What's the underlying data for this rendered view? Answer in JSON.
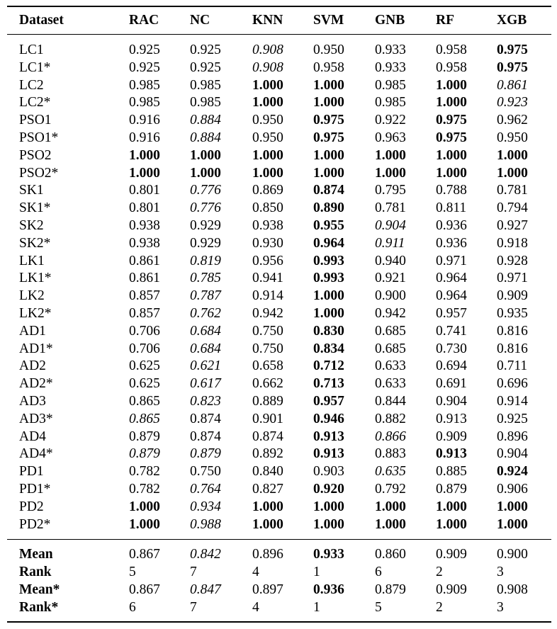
{
  "columns": [
    "Dataset",
    "RAC",
    "NC",
    "KNN",
    "SVM",
    "GNB",
    "RF",
    "XGB"
  ],
  "rows": [
    {
      "dataset": "LC1",
      "values": [
        "0.925",
        "0.925",
        "0.908",
        "0.950",
        "0.933",
        "0.958",
        "0.975"
      ],
      "styles": [
        "",
        "",
        "i",
        "",
        "",
        "",
        "b"
      ]
    },
    {
      "dataset": "LC1*",
      "values": [
        "0.925",
        "0.925",
        "0.908",
        "0.958",
        "0.933",
        "0.958",
        "0.975"
      ],
      "styles": [
        "",
        "",
        "i",
        "",
        "",
        "",
        "b"
      ]
    },
    {
      "dataset": "LC2",
      "values": [
        "0.985",
        "0.985",
        "1.000",
        "1.000",
        "0.985",
        "1.000",
        "0.861"
      ],
      "styles": [
        "",
        "",
        "b",
        "b",
        "",
        "b",
        "i"
      ]
    },
    {
      "dataset": "LC2*",
      "values": [
        "0.985",
        "0.985",
        "1.000",
        "1.000",
        "0.985",
        "1.000",
        "0.923"
      ],
      "styles": [
        "",
        "",
        "b",
        "b",
        "",
        "b",
        "i"
      ]
    },
    {
      "dataset": "PSO1",
      "values": [
        "0.916",
        "0.884",
        "0.950",
        "0.975",
        "0.922",
        "0.975",
        "0.962"
      ],
      "styles": [
        "",
        "i",
        "",
        "b",
        "",
        "b",
        ""
      ]
    },
    {
      "dataset": "PSO1*",
      "values": [
        "0.916",
        "0.884",
        "0.950",
        "0.975",
        "0.963",
        "0.975",
        "0.950"
      ],
      "styles": [
        "",
        "i",
        "",
        "b",
        "",
        "b",
        ""
      ]
    },
    {
      "dataset": "PSO2",
      "values": [
        "1.000",
        "1.000",
        "1.000",
        "1.000",
        "1.000",
        "1.000",
        "1.000"
      ],
      "styles": [
        "b",
        "b",
        "b",
        "b",
        "b",
        "b",
        "b"
      ]
    },
    {
      "dataset": "PSO2*",
      "values": [
        "1.000",
        "1.000",
        "1.000",
        "1.000",
        "1.000",
        "1.000",
        "1.000"
      ],
      "styles": [
        "b",
        "b",
        "b",
        "b",
        "b",
        "b",
        "b"
      ]
    },
    {
      "dataset": "SK1",
      "values": [
        "0.801",
        "0.776",
        "0.869",
        "0.874",
        "0.795",
        "0.788",
        "0.781"
      ],
      "styles": [
        "",
        "i",
        "",
        "b",
        "",
        "",
        ""
      ]
    },
    {
      "dataset": "SK1*",
      "values": [
        "0.801",
        "0.776",
        "0.850",
        "0.890",
        "0.781",
        "0.811",
        "0.794"
      ],
      "styles": [
        "",
        "i",
        "",
        "b",
        "",
        "",
        ""
      ]
    },
    {
      "dataset": "SK2",
      "values": [
        "0.938",
        "0.929",
        "0.938",
        "0.955",
        "0.904",
        "0.936",
        "0.927"
      ],
      "styles": [
        "",
        "",
        "",
        "b",
        "i",
        "",
        ""
      ]
    },
    {
      "dataset": "SK2*",
      "values": [
        "0.938",
        "0.929",
        "0.930",
        "0.964",
        "0.911",
        "0.936",
        "0.918"
      ],
      "styles": [
        "",
        "",
        "",
        "b",
        "i",
        "",
        ""
      ]
    },
    {
      "dataset": "LK1",
      "values": [
        "0.861",
        "0.819",
        "0.956",
        "0.993",
        "0.940",
        "0.971",
        "0.928"
      ],
      "styles": [
        "",
        "i",
        "",
        "b",
        "",
        "",
        ""
      ]
    },
    {
      "dataset": "LK1*",
      "values": [
        "0.861",
        "0.785",
        "0.941",
        "0.993",
        "0.921",
        "0.964",
        "0.971"
      ],
      "styles": [
        "",
        "i",
        "",
        "b",
        "",
        "",
        ""
      ]
    },
    {
      "dataset": "LK2",
      "values": [
        "0.857",
        "0.787",
        "0.914",
        "1.000",
        "0.900",
        "0.964",
        "0.909"
      ],
      "styles": [
        "",
        "i",
        "",
        "b",
        "",
        "",
        ""
      ]
    },
    {
      "dataset": "LK2*",
      "values": [
        "0.857",
        "0.762",
        "0.942",
        "1.000",
        "0.942",
        "0.957",
        "0.935"
      ],
      "styles": [
        "",
        "i",
        "",
        "b",
        "",
        "",
        ""
      ]
    },
    {
      "dataset": "AD1",
      "values": [
        "0.706",
        "0.684",
        "0.750",
        "0.830",
        "0.685",
        "0.741",
        "0.816"
      ],
      "styles": [
        "",
        "i",
        "",
        "b",
        "",
        "",
        ""
      ]
    },
    {
      "dataset": "AD1*",
      "values": [
        "0.706",
        "0.684",
        "0.750",
        "0.834",
        "0.685",
        "0.730",
        "0.816"
      ],
      "styles": [
        "",
        "i",
        "",
        "b",
        "",
        "",
        ""
      ]
    },
    {
      "dataset": "AD2",
      "values": [
        "0.625",
        "0.621",
        "0.658",
        "0.712",
        "0.633",
        "0.694",
        "0.711"
      ],
      "styles": [
        "",
        "i",
        "",
        "b",
        "",
        "",
        ""
      ]
    },
    {
      "dataset": "AD2*",
      "values": [
        "0.625",
        "0.617",
        "0.662",
        "0.713",
        "0.633",
        "0.691",
        "0.696"
      ],
      "styles": [
        "",
        "i",
        "",
        "b",
        "",
        "",
        ""
      ]
    },
    {
      "dataset": "AD3",
      "values": [
        "0.865",
        "0.823",
        "0.889",
        "0.957",
        "0.844",
        "0.904",
        "0.914"
      ],
      "styles": [
        "",
        "i",
        "",
        "b",
        "",
        "",
        ""
      ]
    },
    {
      "dataset": "AD3*",
      "values": [
        "0.865",
        "0.874",
        "0.901",
        "0.946",
        "0.882",
        "0.913",
        "0.925"
      ],
      "styles": [
        "i",
        "",
        "",
        "b",
        "",
        "",
        ""
      ]
    },
    {
      "dataset": "AD4",
      "values": [
        "0.879",
        "0.874",
        "0.874",
        "0.913",
        "0.866",
        "0.909",
        "0.896"
      ],
      "styles": [
        "",
        "",
        "",
        "b",
        "i",
        "",
        ""
      ]
    },
    {
      "dataset": "AD4*",
      "values": [
        "0.879",
        "0.879",
        "0.892",
        "0.913",
        "0.883",
        "0.913",
        "0.904"
      ],
      "styles": [
        "i",
        "i",
        "",
        "b",
        "",
        "b",
        ""
      ]
    },
    {
      "dataset": "PD1",
      "values": [
        "0.782",
        "0.750",
        "0.840",
        "0.903",
        "0.635",
        "0.885",
        "0.924"
      ],
      "styles": [
        "",
        "",
        "",
        "",
        "i",
        "",
        "b"
      ]
    },
    {
      "dataset": "PD1*",
      "values": [
        "0.782",
        "0.764",
        "0.827",
        "0.920",
        "0.792",
        "0.879",
        "0.906"
      ],
      "styles": [
        "",
        "i",
        "",
        "b",
        "",
        "",
        ""
      ]
    },
    {
      "dataset": "PD2",
      "values": [
        "1.000",
        "0.934",
        "1.000",
        "1.000",
        "1.000",
        "1.000",
        "1.000"
      ],
      "styles": [
        "b",
        "i",
        "b",
        "b",
        "b",
        "b",
        "b"
      ]
    },
    {
      "dataset": "PD2*",
      "values": [
        "1.000",
        "0.988",
        "1.000",
        "1.000",
        "1.000",
        "1.000",
        "1.000"
      ],
      "styles": [
        "b",
        "i",
        "b",
        "b",
        "b",
        "b",
        "b"
      ]
    }
  ],
  "summary": [
    {
      "label": "Mean",
      "values": [
        "0.867",
        "0.842",
        "0.896",
        "0.933",
        "0.860",
        "0.909",
        "0.900"
      ],
      "styles": [
        "",
        "i",
        "",
        "b",
        "",
        "",
        ""
      ]
    },
    {
      "label": "Rank",
      "values": [
        "5",
        "7",
        "4",
        "1",
        "6",
        "2",
        "3"
      ],
      "styles": [
        "",
        "",
        "",
        "",
        "",
        "",
        ""
      ]
    },
    {
      "label": "Mean*",
      "values": [
        "0.867",
        "0.847",
        "0.897",
        "0.936",
        "0.879",
        "0.909",
        "0.908"
      ],
      "styles": [
        "",
        "i",
        "",
        "b",
        "",
        "",
        ""
      ]
    },
    {
      "label": "Rank*",
      "values": [
        "6",
        "7",
        "4",
        "1",
        "5",
        "2",
        "3"
      ],
      "styles": [
        "",
        "",
        "",
        "",
        "",
        "",
        ""
      ]
    }
  ]
}
